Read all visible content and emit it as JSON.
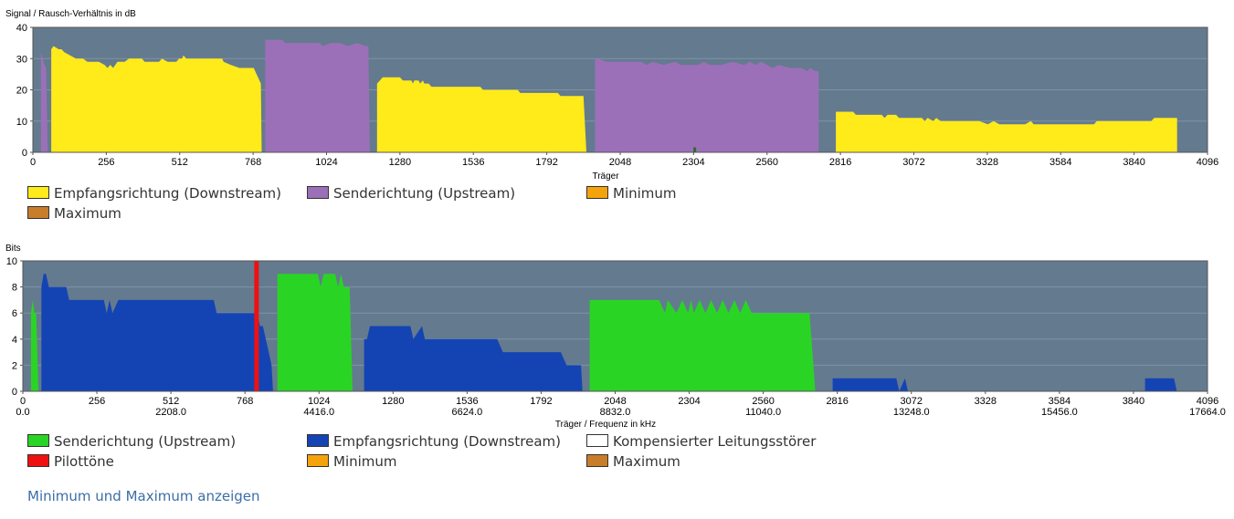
{
  "chart_data": [
    {
      "type": "area",
      "ylabel": "Signal / Rausch-Verhältnis in dB",
      "xlabel": "Träger",
      "xlim": [
        0,
        4096
      ],
      "ylim": [
        0,
        40
      ],
      "yticks": [
        "0",
        "10",
        "20",
        "30",
        "40"
      ],
      "xticks": [
        "0",
        "256",
        "512",
        "768",
        "1024",
        "1280",
        "1536",
        "1792",
        "2048",
        "2304",
        "2560",
        "2816",
        "3072",
        "3328",
        "3584",
        "3840",
        "4096"
      ],
      "background_color": "#647a8f",
      "grid": true,
      "series": [
        {
          "name": "Empfangsrichtung (Downstream)",
          "color": "#ffea1a",
          "points": [
            [
              64,
              0
            ],
            [
              64,
              33
            ],
            [
              72,
              34
            ],
            [
              90,
              33
            ],
            [
              100,
              33
            ],
            [
              110,
              32
            ],
            [
              130,
              31
            ],
            [
              150,
              30
            ],
            [
              175,
              30
            ],
            [
              190,
              29
            ],
            [
              230,
              29
            ],
            [
              250,
              28
            ],
            [
              260,
              27
            ],
            [
              270,
              28
            ],
            [
              280,
              27
            ],
            [
              295,
              29
            ],
            [
              320,
              29
            ],
            [
              335,
              30
            ],
            [
              380,
              30
            ],
            [
              390,
              29
            ],
            [
              440,
              29
            ],
            [
              450,
              30
            ],
            [
              470,
              29
            ],
            [
              500,
              29
            ],
            [
              510,
              30
            ],
            [
              520,
              30
            ],
            [
              525,
              31
            ],
            [
              535,
              30
            ],
            [
              660,
              30
            ],
            [
              665,
              29
            ],
            [
              690,
              28
            ],
            [
              720,
              27
            ],
            [
              740,
              27
            ],
            [
              770,
              27
            ],
            [
              780,
              25
            ],
            [
              795,
              22
            ],
            [
              798,
              0
            ],
            [
              1200,
              0
            ],
            [
              1200,
              22
            ],
            [
              1210,
              23
            ],
            [
              1220,
              24
            ],
            [
              1280,
              24
            ],
            [
              1290,
              23
            ],
            [
              1320,
              23
            ],
            [
              1325,
              22
            ],
            [
              1330,
              23
            ],
            [
              1345,
              23
            ],
            [
              1350,
              22
            ],
            [
              1360,
              23
            ],
            [
              1365,
              22
            ],
            [
              1380,
              22
            ],
            [
              1390,
              21
            ],
            [
              1500,
              21
            ],
            [
              1510,
              21
            ],
            [
              1560,
              21
            ],
            [
              1570,
              20
            ],
            [
              1690,
              20
            ],
            [
              1700,
              19
            ],
            [
              1830,
              19
            ],
            [
              1840,
              18
            ],
            [
              1900,
              18
            ],
            [
              1920,
              18
            ],
            [
              1930,
              0
            ],
            [
              2800,
              0
            ],
            [
              2800,
              13
            ],
            [
              2810,
              13
            ],
            [
              2820,
              13
            ],
            [
              2860,
              13
            ],
            [
              2870,
              12
            ],
            [
              2960,
              12
            ],
            [
              2970,
              11
            ],
            [
              2980,
              12
            ],
            [
              3010,
              12
            ],
            [
              3020,
              11
            ],
            [
              3100,
              11
            ],
            [
              3110,
              10
            ],
            [
              3120,
              11
            ],
            [
              3140,
              10
            ],
            [
              3150,
              11
            ],
            [
              3165,
              10
            ],
            [
              3300,
              10
            ],
            [
              3330,
              9
            ],
            [
              3350,
              10
            ],
            [
              3370,
              9
            ],
            [
              3460,
              9
            ],
            [
              3480,
              10
            ],
            [
              3490,
              9
            ],
            [
              3700,
              9
            ],
            [
              3710,
              10
            ],
            [
              3900,
              10
            ],
            [
              3910,
              11
            ],
            [
              3990,
              11
            ],
            [
              3990,
              0
            ]
          ]
        },
        {
          "name": "Senderichtung (Upstream)",
          "color": "#9b70b8",
          "points": [
            [
              28,
              0
            ],
            [
              28,
              32
            ],
            [
              34,
              30
            ],
            [
              40,
              28
            ],
            [
              46,
              27
            ],
            [
              52,
              0
            ],
            [
              54,
              0
            ],
            [
              810,
              0
            ],
            [
              810,
              36
            ],
            [
              820,
              36
            ],
            [
              870,
              36
            ],
            [
              880,
              35
            ],
            [
              930,
              35
            ],
            [
              940,
              35
            ],
            [
              1000,
              35
            ],
            [
              1010,
              34
            ],
            [
              1040,
              35
            ],
            [
              1070,
              35
            ],
            [
              1100,
              34
            ],
            [
              1130,
              35
            ],
            [
              1160,
              34
            ],
            [
              1170,
              34
            ],
            [
              1175,
              0
            ],
            [
              1960,
              0
            ],
            [
              1960,
              30
            ],
            [
              1970,
              30
            ],
            [
              2000,
              29
            ],
            [
              2060,
              29
            ],
            [
              2120,
              29
            ],
            [
              2140,
              28
            ],
            [
              2160,
              29
            ],
            [
              2200,
              28
            ],
            [
              2240,
              29
            ],
            [
              2260,
              28
            ],
            [
              2300,
              28
            ],
            [
              2320,
              28
            ],
            [
              2340,
              29
            ],
            [
              2360,
              28
            ],
            [
              2400,
              28
            ],
            [
              2440,
              29
            ],
            [
              2480,
              28
            ],
            [
              2500,
              29
            ],
            [
              2520,
              28
            ],
            [
              2540,
              29
            ],
            [
              2560,
              28
            ],
            [
              2580,
              27
            ],
            [
              2600,
              28
            ],
            [
              2640,
              27
            ],
            [
              2680,
              27
            ],
            [
              2700,
              26
            ],
            [
              2710,
              27
            ],
            [
              2730,
              26
            ],
            [
              2740,
              26
            ],
            [
              2740,
              0
            ]
          ]
        },
        {
          "name": "Minimum",
          "color": "#f5a30c",
          "points": []
        },
        {
          "name": "Maximum",
          "color": "#c87d2a",
          "points": []
        }
      ],
      "markers": [
        {
          "x": 2308,
          "from": 0,
          "to": 1.6,
          "color": "#2d6b2a"
        }
      ]
    },
    {
      "type": "area",
      "ylabel": "Bits",
      "xlabel": "Träger / Frequenz in kHz",
      "xlim": [
        0,
        4096
      ],
      "ylim": [
        0,
        10
      ],
      "yticks": [
        "0",
        "2",
        "4",
        "6",
        "8",
        "10"
      ],
      "xticks": [
        "0",
        "256",
        "512",
        "768",
        "1024",
        "1280",
        "1536",
        "1792",
        "2048",
        "2304",
        "2560",
        "2816",
        "3072",
        "3328",
        "3584",
        "3840",
        "4096"
      ],
      "freq_ticks": [
        "0.0",
        "",
        "2208.0",
        "",
        "4416.0",
        "",
        "6624.0",
        "",
        "8832.0",
        "",
        "11040.0",
        "",
        "13248.0",
        "",
        "15456.0",
        "",
        "17664.0"
      ],
      "background_color": "#647a8f",
      "grid": true,
      "series": [
        {
          "name": "Senderichtung (Upstream)",
          "color": "#2ad424",
          "points": [
            [
              28,
              0
            ],
            [
              28,
              6
            ],
            [
              34,
              7
            ],
            [
              40,
              6
            ],
            [
              46,
              6
            ],
            [
              54,
              0
            ],
            [
              880,
              0
            ],
            [
              880,
              9
            ],
            [
              890,
              9
            ],
            [
              1020,
              9
            ],
            [
              1030,
              8
            ],
            [
              1040,
              9
            ],
            [
              1080,
              9
            ],
            [
              1090,
              8
            ],
            [
              1100,
              9
            ],
            [
              1110,
              8
            ],
            [
              1130,
              8
            ],
            [
              1140,
              0
            ],
            [
              1960,
              0
            ],
            [
              1960,
              7
            ],
            [
              1970,
              7
            ],
            [
              2200,
              7
            ],
            [
              2220,
              6
            ],
            [
              2230,
              7
            ],
            [
              2260,
              6
            ],
            [
              2280,
              7
            ],
            [
              2300,
              6
            ],
            [
              2310,
              7
            ],
            [
              2320,
              6
            ],
            [
              2340,
              7
            ],
            [
              2360,
              6
            ],
            [
              2380,
              7
            ],
            [
              2400,
              6
            ],
            [
              2420,
              7
            ],
            [
              2440,
              6
            ],
            [
              2460,
              7
            ],
            [
              2480,
              6
            ],
            [
              2500,
              7
            ],
            [
              2520,
              6
            ],
            [
              2700,
              6
            ],
            [
              2720,
              6
            ],
            [
              2740,
              0
            ]
          ]
        },
        {
          "name": "Empfangsrichtung (Downstream)",
          "color": "#1444b4",
          "points": [
            [
              64,
              0
            ],
            [
              64,
              8
            ],
            [
              72,
              9
            ],
            [
              80,
              9
            ],
            [
              90,
              8
            ],
            [
              150,
              8
            ],
            [
              160,
              7
            ],
            [
              280,
              7
            ],
            [
              290,
              6
            ],
            [
              300,
              7
            ],
            [
              310,
              6
            ],
            [
              330,
              7
            ],
            [
              660,
              7
            ],
            [
              670,
              6
            ],
            [
              810,
              6
            ],
            [
              820,
              5
            ],
            [
              830,
              5
            ],
            [
              840,
              4
            ],
            [
              850,
              3
            ],
            [
              860,
              2
            ],
            [
              865,
              0
            ],
            [
              1180,
              0
            ],
            [
              1180,
              4
            ],
            [
              1190,
              4
            ],
            [
              1200,
              5
            ],
            [
              1340,
              5
            ],
            [
              1350,
              4
            ],
            [
              1380,
              5
            ],
            [
              1390,
              4
            ],
            [
              1400,
              4
            ],
            [
              1410,
              4
            ],
            [
              1420,
              4
            ],
            [
              1640,
              4
            ],
            [
              1660,
              3
            ],
            [
              1720,
              3
            ],
            [
              1760,
              3
            ],
            [
              1860,
              3
            ],
            [
              1880,
              2
            ],
            [
              1930,
              2
            ],
            [
              1935,
              0
            ],
            [
              2800,
              0
            ],
            [
              2800,
              1
            ],
            [
              2810,
              1
            ],
            [
              3020,
              1
            ],
            [
              3030,
              0
            ],
            [
              3050,
              1
            ],
            [
              3060,
              0
            ],
            [
              3880,
              0
            ],
            [
              3880,
              1
            ],
            [
              3890,
              1
            ],
            [
              3980,
              1
            ],
            [
              3990,
              0
            ]
          ]
        },
        {
          "name": "Kompensierter Leitungsstörer",
          "color": "#ffffff",
          "points": []
        },
        {
          "name": "Pilottöne",
          "color": "#ee1111",
          "points": [],
          "x": 808
        },
        {
          "name": "Minimum",
          "color": "#f5a30c",
          "points": []
        },
        {
          "name": "Maximum",
          "color": "#c87d2a",
          "points": []
        }
      ]
    }
  ],
  "legend1": {
    "downstream": "Empfangsrichtung (Downstream)",
    "upstream": "Senderichtung (Upstream)",
    "minimum": "Minimum",
    "maximum": "Maximum"
  },
  "legend2": {
    "upstream": "Senderichtung (Upstream)",
    "downstream": "Empfangsrichtung (Downstream)",
    "compensated": "Kompensierter Leitungsstörer",
    "pilot": "Pilottöne",
    "minimum": "Minimum",
    "maximum": "Maximum"
  },
  "toggle_link": "Minimum und Maximum anzeigen",
  "colors": {
    "downstream_snr": "#ffea1a",
    "upstream_snr": "#9b70b8",
    "upstream_bits": "#2ad424",
    "downstream_bits": "#1444b4",
    "compensated": "#ffffff",
    "pilot": "#ee1111",
    "minimum": "#f5a30c",
    "maximum": "#c87d2a",
    "link": "#3b6ea5"
  }
}
